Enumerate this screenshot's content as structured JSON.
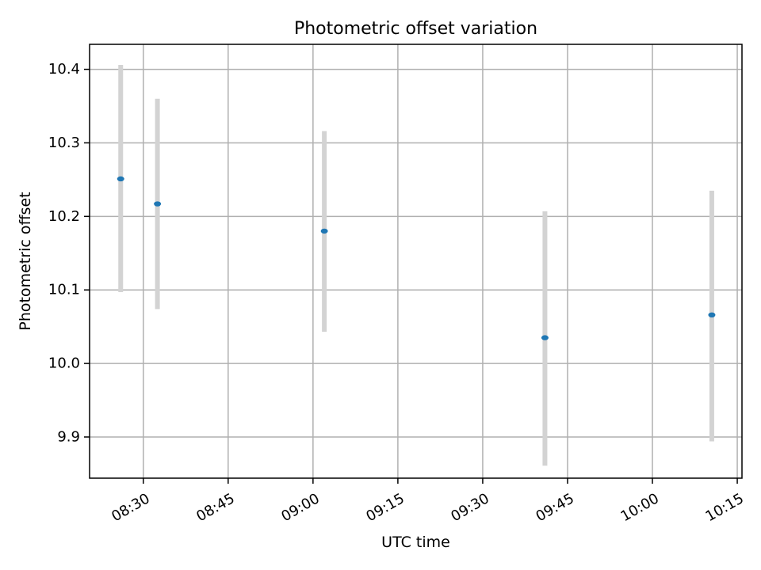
{
  "chart_data": {
    "type": "scatter",
    "title": "Photometric offset variation",
    "xlabel": "UTC time",
    "ylabel": "Photometric offset",
    "x_ticks": [
      "08:30",
      "08:45",
      "09:00",
      "09:15",
      "09:30",
      "09:45",
      "10:00",
      "10:15"
    ],
    "y_ticks": [
      9.9,
      10.0,
      10.1,
      10.2,
      10.3,
      10.4
    ],
    "xlim": [
      "08:20:30",
      "10:15:50"
    ],
    "ylim": [
      9.844,
      10.434
    ],
    "grid": true,
    "points": [
      {
        "time": "08:26:00",
        "value": 10.251,
        "err_low": 10.097,
        "err_high": 10.406
      },
      {
        "time": "08:32:30",
        "value": 10.217,
        "err_low": 10.074,
        "err_high": 10.36
      },
      {
        "time": "09:02:00",
        "value": 10.18,
        "err_low": 10.043,
        "err_high": 10.316
      },
      {
        "time": "09:41:00",
        "value": 10.035,
        "err_low": 9.861,
        "err_high": 10.207
      },
      {
        "time": "10:10:30",
        "value": 10.066,
        "err_low": 9.894,
        "err_high": 10.235
      }
    ],
    "colors": {
      "marker": "#1f77b4",
      "errorbar": "#d3d3d3",
      "grid": "#b0b0b0"
    }
  }
}
